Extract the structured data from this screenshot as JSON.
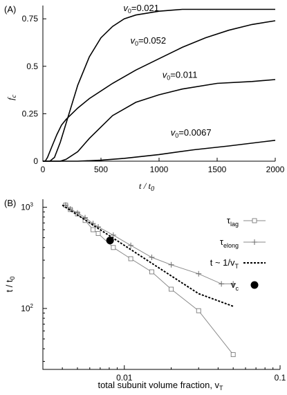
{
  "chart_data": [
    {
      "panel": "(A)",
      "type": "line",
      "xlabel": "t / t",
      "xlabel_sub": "0",
      "ylabel": "f",
      "ylabel_sub": "c",
      "xlim": [
        0,
        2000
      ],
      "ylim": [
        0,
        0.82
      ],
      "xticks": [
        0,
        500,
        1000,
        1500,
        2000
      ],
      "xtick_labels": [
        "0",
        "500",
        "1000",
        "1500",
        "2000"
      ],
      "yticks": [
        0,
        0.25,
        0.5,
        0.75
      ],
      "ytick_labels": [
        "0",
        "0.25",
        "0.5",
        "0.75"
      ],
      "series": [
        {
          "name": "v0=0.021",
          "label_main": "v",
          "label_sub": "0",
          "label_value": "=0.021",
          "x": [
            0,
            60,
            100,
            150,
            200,
            250,
            300,
            400,
            500,
            600,
            700,
            800,
            1000,
            1200,
            1500,
            2000
          ],
          "y": [
            0,
            0,
            0.02,
            0.1,
            0.2,
            0.3,
            0.4,
            0.55,
            0.65,
            0.71,
            0.75,
            0.77,
            0.79,
            0.8,
            0.8,
            0.8
          ]
        },
        {
          "name": "v0=0.052",
          "label_main": "v",
          "label_sub": "0",
          "label_value": "=0.052",
          "x": [
            0,
            20,
            40,
            80,
            120,
            160,
            200,
            300,
            400,
            600,
            800,
            1000,
            1200,
            1400,
            1600,
            1800,
            2000
          ],
          "y": [
            0,
            0,
            0.02,
            0.08,
            0.14,
            0.19,
            0.22,
            0.28,
            0.33,
            0.41,
            0.48,
            0.54,
            0.6,
            0.65,
            0.69,
            0.72,
            0.74
          ]
        },
        {
          "name": "v0=0.011",
          "label_main": "v",
          "label_sub": "0",
          "label_value": "=0.011",
          "x": [
            0,
            150,
            200,
            300,
            400,
            500,
            600,
            800,
            1000,
            1200,
            1500,
            1800,
            2000
          ],
          "y": [
            0,
            0,
            0.01,
            0.05,
            0.12,
            0.18,
            0.24,
            0.31,
            0.35,
            0.38,
            0.41,
            0.42,
            0.43
          ]
        },
        {
          "name": "v0=0.0067",
          "label_main": "v",
          "label_sub": "0",
          "label_value": "=0.0067",
          "x": [
            0,
            300,
            500,
            700,
            1000,
            1300,
            1600,
            2000
          ],
          "y": [
            0,
            0,
            0.005,
            0.015,
            0.035,
            0.06,
            0.08,
            0.11
          ]
        }
      ]
    },
    {
      "panel": "(B)",
      "type": "scatter",
      "xscale": "log",
      "yscale": "log",
      "xlabel": "total subunit volume fraction, v",
      "xlabel_sub": "T",
      "ylabel": "t / t",
      "ylabel_sub": "0",
      "xlim": [
        0.003,
        0.1
      ],
      "ylim": [
        25,
        1200
      ],
      "xtick_labels": [
        "0.01",
        "0.1"
      ],
      "ytick_labels": [
        "10",
        "10"
      ],
      "ytick_sups": [
        "2",
        "3"
      ],
      "series": [
        {
          "name": "τlag",
          "label_main": "τ",
          "label_sub": "lag",
          "marker": "square",
          "x": [
            0.0042,
            0.0045,
            0.005,
            0.0056,
            0.0063,
            0.0068,
            0.0085,
            0.011,
            0.015,
            0.02,
            0.03,
            0.05
          ],
          "y": [
            1050,
            950,
            860,
            740,
            600,
            550,
            400,
            310,
            230,
            155,
            95,
            35
          ]
        },
        {
          "name": "τelong",
          "label_main": "τ",
          "label_sub": "elong",
          "marker": "plus",
          "x": [
            0.0042,
            0.0045,
            0.005,
            0.0056,
            0.0063,
            0.0068,
            0.0085,
            0.011,
            0.015,
            0.02,
            0.03,
            0.042,
            0.05
          ],
          "y": [
            1050,
            960,
            880,
            790,
            690,
            640,
            530,
            420,
            320,
            270,
            220,
            175,
            175
          ]
        },
        {
          "name": "t ~ 1/vT",
          "label_main": "t ~ 1/v",
          "label_sub": "T",
          "marker": "dashed-line",
          "x": [
            0.004,
            0.006,
            0.008,
            0.01,
            0.015,
            0.02,
            0.03,
            0.05
          ],
          "y": [
            1050,
            700,
            525,
            420,
            280,
            210,
            140,
            105
          ]
        },
        {
          "name": "vc",
          "label_main": "v",
          "label_sub": "c",
          "marker": "filled-circle",
          "x": [
            0.0081
          ],
          "y": [
            470
          ]
        }
      ]
    }
  ]
}
